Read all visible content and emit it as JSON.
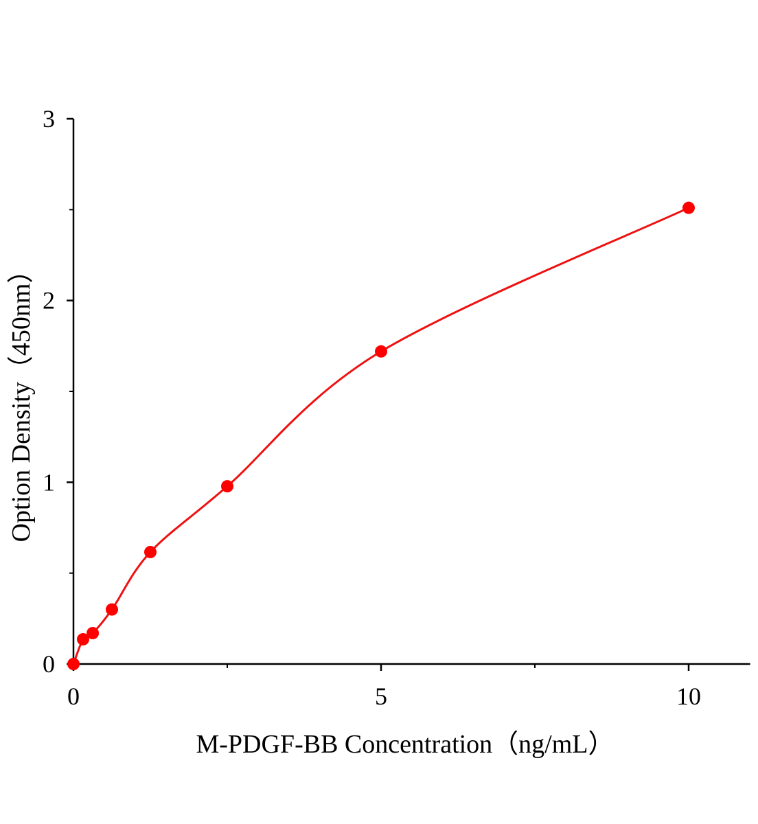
{
  "chart_data": {
    "type": "scatter",
    "title": "",
    "xlabel": "M-PDGF-BB Concentration（ng/mL）",
    "ylabel": "Option Density（450nm）",
    "xlim": [
      0,
      11
    ],
    "ylim": [
      0,
      3
    ],
    "x_ticks": [
      0,
      5,
      10
    ],
    "x_minor_ticks": [
      2.5,
      7.5
    ],
    "y_ticks": [
      0,
      1,
      2,
      3
    ],
    "y_minor_ticks": [
      0.5,
      1.5,
      2.5
    ],
    "x_tick_labels": [
      "0",
      "5",
      "10"
    ],
    "y_tick_labels": [
      "0",
      "1",
      "2",
      "3"
    ],
    "grid": false,
    "series": [
      {
        "x": [
          0,
          0.156,
          0.313,
          0.625,
          1.25,
          2.5,
          5,
          10
        ],
        "y": [
          0.0,
          0.136,
          0.17,
          0.3,
          0.616,
          0.978,
          1.72,
          2.51
        ],
        "fit_curve": true
      }
    ],
    "colors": {
      "series": "#ff0000",
      "curve": "#ee1111",
      "axis": "#000000"
    }
  }
}
